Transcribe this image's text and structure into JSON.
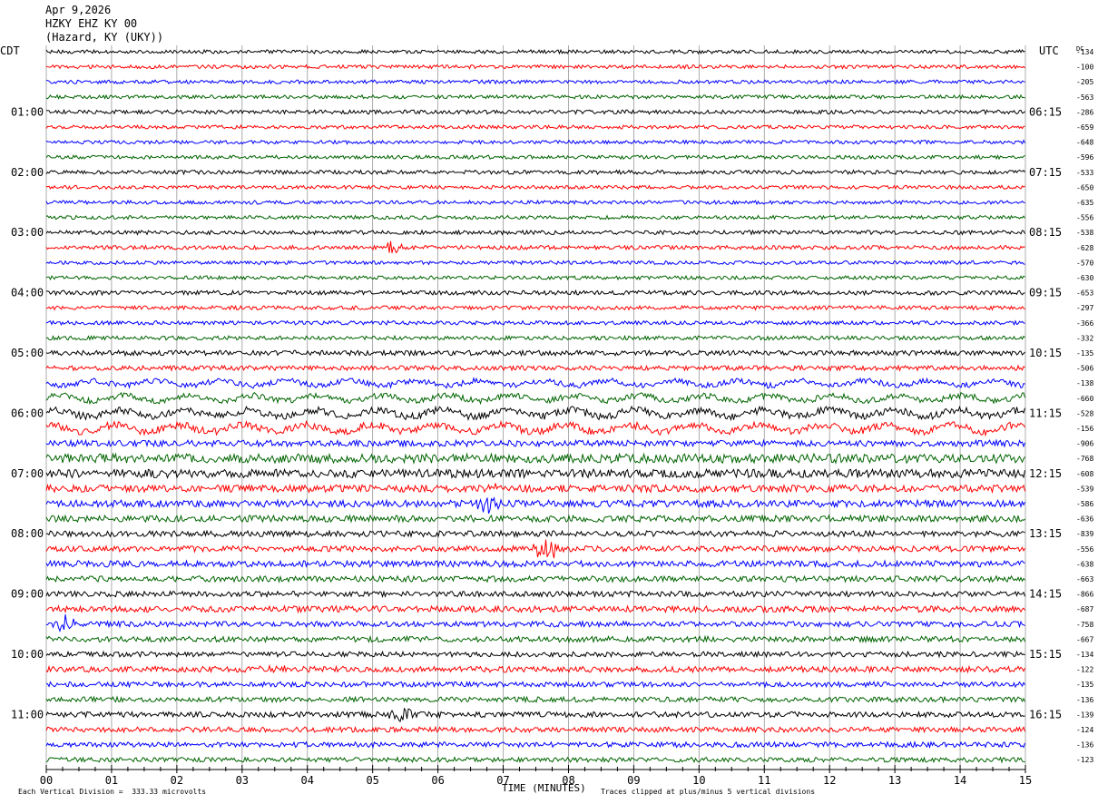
{
  "header": {
    "date": "Apr 9,2026",
    "station": "HZKY EHZ KY 00",
    "location": "(Hazard, KY (UKY))"
  },
  "left_label": "CDT",
  "right_label": "UTC",
  "dc_label": "DC",
  "footer": {
    "scale": "Each Vertical Division =  333.33 microvolts",
    "clip": "Traces clipped at plus/minus 5 vertical divisions",
    "x_title": "TIME (MINUTES)"
  },
  "chart_data": {
    "type": "line",
    "title": "",
    "xlabel": "TIME (MINUTES)",
    "xlim": [
      0,
      15
    ],
    "x_ticks": [
      "00",
      "01",
      "02",
      "03",
      "04",
      "05",
      "06",
      "07",
      "08",
      "09",
      "10",
      "11",
      "12",
      "13",
      "14",
      "15"
    ],
    "grid": "vertical lines every minute",
    "trace_colors": [
      "#000000",
      "#ff0000",
      "#0000ff",
      "#006400"
    ],
    "left_hour_labels": [
      "01:00",
      "02:00",
      "03:00",
      "04:00",
      "05:00",
      "06:00",
      "07:00",
      "08:00",
      "09:00",
      "10:00",
      "11:00"
    ],
    "right_hour_labels": [
      "06:15",
      "07:15",
      "08:15",
      "09:15",
      "10:15",
      "11:15",
      "12:15",
      "13:15",
      "14:15",
      "15:15",
      "16:15"
    ],
    "dc_offsets": [
      "-134",
      "-100",
      "-205",
      "-563",
      "-286",
      "-659",
      "-648",
      "-596",
      "-533",
      "-650",
      "-635",
      "-556",
      "-538",
      "-628",
      "-570",
      "-630",
      "-653",
      "-297",
      "-366",
      "-332",
      "-135",
      "-506",
      "-138",
      "-660",
      "-528",
      "-156",
      "-906",
      "-768",
      "-608",
      "-539",
      "-586",
      "-636",
      "-839",
      "-556",
      "-638",
      "-663",
      "-866",
      "-687",
      "-758",
      "-667",
      "-134",
      "-122",
      "-135",
      "-136",
      "-139",
      "-124",
      "-136",
      "-123"
    ],
    "trace_count": 48,
    "amplitudes": [
      2.0,
      2.0,
      2.0,
      2.0,
      2.2,
      2.0,
      2.0,
      2.0,
      2.2,
      2.0,
      2.0,
      2.0,
      2.2,
      2.2,
      2.0,
      2.0,
      2.4,
      2.2,
      2.2,
      2.2,
      2.8,
      2.6,
      3.0,
      3.2,
      4.0,
      4.0,
      3.4,
      5.0,
      4.6,
      4.0,
      3.8,
      3.6,
      3.2,
      3.2,
      3.4,
      3.2,
      3.0,
      3.4,
      3.0,
      3.0,
      2.8,
      3.2,
      2.8,
      2.8,
      3.0,
      2.8,
      2.8,
      2.6
    ],
    "events": [
      {
        "trace": 13,
        "minute": 5.3,
        "size": 8
      },
      {
        "trace": 29,
        "minute": 6.9,
        "size": 6
      },
      {
        "trace": 30,
        "minute": 6.8,
        "size": 12
      },
      {
        "trace": 33,
        "minute": 7.65,
        "size": 16
      },
      {
        "trace": 38,
        "minute": 0.3,
        "size": 9
      },
      {
        "trace": 44,
        "minute": 5.45,
        "size": 12
      },
      {
        "trace": 41,
        "minute": 3.5,
        "size": 6
      }
    ]
  }
}
